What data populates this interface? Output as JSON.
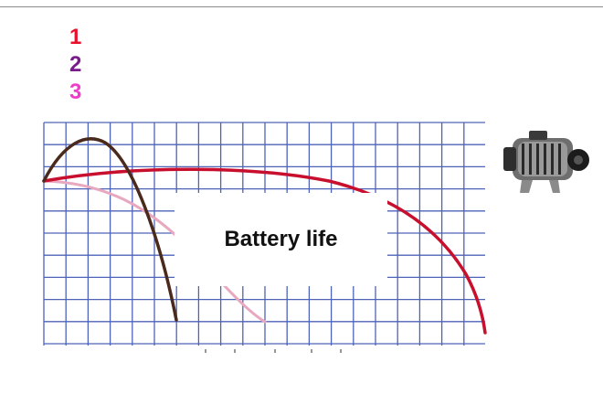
{
  "legend": {
    "items": [
      {
        "label": "1",
        "color": "#e8112d"
      },
      {
        "label": "2",
        "color": "#7a1a8c"
      },
      {
        "label": "3",
        "color": "#f03cc8"
      }
    ]
  },
  "graph": {
    "grid_color": "#4e63b8",
    "curves": [
      {
        "name": "curve-1",
        "color": "#c8102e"
      },
      {
        "name": "curve-2",
        "color": "#4a2a1c"
      },
      {
        "name": "curve-3",
        "color": "#e8a8c0"
      }
    ]
  },
  "overlay": {
    "label": "Battery life"
  },
  "image": {
    "icon": "alternator-icon"
  }
}
